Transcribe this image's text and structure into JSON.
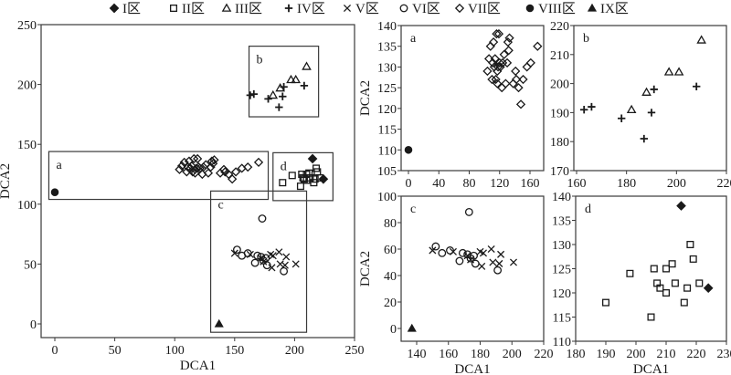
{
  "chart_data": {
    "type": "scatter",
    "legend": {
      "placement": "top",
      "entries": [
        {
          "key": "I",
          "label": "I区",
          "marker": "filled-diamond"
        },
        {
          "key": "II",
          "label": "II区",
          "marker": "open-square"
        },
        {
          "key": "III",
          "label": "III区",
          "marker": "open-triangle"
        },
        {
          "key": "IV",
          "label": "IV区",
          "marker": "plus"
        },
        {
          "key": "V",
          "label": "V区",
          "marker": "cross"
        },
        {
          "key": "VI",
          "label": "VI区",
          "marker": "open-circle"
        },
        {
          "key": "VII",
          "label": "VII区",
          "marker": "open-diamond"
        },
        {
          "key": "VIII",
          "label": "VIII区",
          "marker": "filled-circle"
        },
        {
          "key": "IX",
          "label": "IX区",
          "marker": "filled-triangle"
        }
      ]
    },
    "series": {
      "I": [
        [
          215,
          138
        ],
        [
          224,
          121
        ]
      ],
      "II": [
        [
          190,
          118
        ],
        [
          198,
          124
        ],
        [
          205,
          115
        ],
        [
          206,
          125
        ],
        [
          207,
          122
        ],
        [
          208,
          121
        ],
        [
          210,
          120
        ],
        [
          210,
          125
        ],
        [
          212,
          126
        ],
        [
          213,
          122
        ],
        [
          216,
          118
        ],
        [
          217,
          121
        ],
        [
          218,
          130
        ],
        [
          219,
          127
        ],
        [
          221,
          122
        ]
      ],
      "III": [
        [
          182,
          191
        ],
        [
          188,
          197
        ],
        [
          197,
          204
        ],
        [
          201,
          204
        ],
        [
          210,
          215
        ]
      ],
      "IV": [
        [
          163,
          191
        ],
        [
          166,
          192
        ],
        [
          178,
          188
        ],
        [
          187,
          181
        ],
        [
          190,
          190
        ],
        [
          191,
          198
        ],
        [
          208,
          199
        ]
      ],
      "V": [
        [
          150,
          59
        ],
        [
          163,
          58
        ],
        [
          172,
          55
        ],
        [
          174,
          52
        ],
        [
          180,
          58
        ],
        [
          181,
          47
        ],
        [
          182,
          57
        ],
        [
          187,
          60
        ],
        [
          188,
          50
        ],
        [
          192,
          49
        ],
        [
          193,
          56
        ],
        [
          201,
          50
        ]
      ],
      "VI": [
        [
          152,
          62
        ],
        [
          156,
          57
        ],
        [
          161,
          59
        ],
        [
          167,
          51
        ],
        [
          169,
          57
        ],
        [
          172,
          56
        ],
        [
          173,
          88
        ],
        [
          174,
          53
        ],
        [
          176,
          55
        ],
        [
          177,
          49
        ],
        [
          191,
          44
        ]
      ],
      "VII": [
        [
          104,
          129
        ],
        [
          106,
          132
        ],
        [
          108,
          135
        ],
        [
          110,
          127
        ],
        [
          111,
          131
        ],
        [
          112,
          136
        ],
        [
          113,
          130
        ],
        [
          114,
          132
        ],
        [
          115,
          127
        ],
        [
          116,
          138
        ],
        [
          117,
          126
        ],
        [
          117,
          129
        ],
        [
          118,
          130
        ],
        [
          119,
          138
        ],
        [
          120,
          131
        ],
        [
          121,
          130
        ],
        [
          123,
          125
        ],
        [
          124,
          131
        ],
        [
          126,
          133
        ],
        [
          128,
          126
        ],
        [
          130,
          131
        ],
        [
          131,
          136
        ],
        [
          132,
          134
        ],
        [
          133,
          137
        ],
        [
          138,
          126
        ],
        [
          141,
          129
        ],
        [
          142,
          127
        ],
        [
          145,
          125
        ],
        [
          148,
          121
        ],
        [
          151,
          127
        ],
        [
          156,
          130
        ],
        [
          161,
          131
        ],
        [
          170,
          135
        ]
      ],
      "VIII": [
        [
          0,
          110
        ]
      ],
      "IX": [
        [
          137,
          0
        ]
      ]
    },
    "panels": [
      {
        "id": "main",
        "xlabel": "DCA1",
        "ylabel": "DCA2",
        "xlim": [
          -10,
          250
        ],
        "ylim": [
          -10,
          250
        ],
        "xticks": [
          "0",
          "50",
          "100",
          "150",
          "200",
          "250"
        ],
        "yticks": [
          "0",
          "50",
          "100",
          "150",
          "200",
          "250"
        ],
        "insets": [
          {
            "label": "a",
            "xrange": [
              -5,
              178
            ],
            "yrange": [
              104,
              144
            ]
          },
          {
            "label": "b",
            "xrange": [
              162,
              220
            ],
            "yrange": [
              173,
              232
            ]
          },
          {
            "label": "c",
            "xrange": [
              130,
              210
            ],
            "yrange": [
              -7,
              111
            ]
          },
          {
            "label": "d",
            "xrange": [
              182,
              232
            ],
            "yrange": [
              103,
              143
            ]
          }
        ]
      },
      {
        "id": "a",
        "label": "a",
        "xlabel": "",
        "ylabel": "DCA2",
        "xlim": [
          -5,
          185
        ],
        "ylim": [
          105,
          140
        ],
        "xticks": [
          "0",
          "40",
          "80",
          "120",
          "160"
        ],
        "yticks": [
          "105",
          "110",
          "115",
          "120",
          "125",
          "130",
          "135",
          "140"
        ]
      },
      {
        "id": "b",
        "label": "b",
        "xlabel": "",
        "ylabel": "",
        "xlim": [
          160,
          220
        ],
        "ylim": [
          170,
          220
        ],
        "xticks": [
          "160",
          "180",
          "200",
          "220"
        ],
        "yticks": [
          "170",
          "180",
          "190",
          "200",
          "210",
          "220"
        ]
      },
      {
        "id": "c",
        "label": "c",
        "xlabel": "DCA1",
        "ylabel": "DCA2",
        "xlim": [
          130,
          220
        ],
        "ylim": [
          -10,
          100
        ],
        "xticks": [
          "140",
          "160",
          "180",
          "200",
          "220"
        ],
        "yticks": [
          "0",
          "20",
          "40",
          "60",
          "80",
          "100"
        ]
      },
      {
        "id": "d",
        "label": "d",
        "xlabel": "DCA1",
        "ylabel": "",
        "xlim": [
          180,
          230
        ],
        "ylim": [
          110,
          140
        ],
        "xticks": [
          "180",
          "190",
          "200",
          "210",
          "220",
          "230"
        ],
        "yticks": [
          "110",
          "115",
          "120",
          "125",
          "130",
          "135",
          "140"
        ]
      }
    ]
  }
}
